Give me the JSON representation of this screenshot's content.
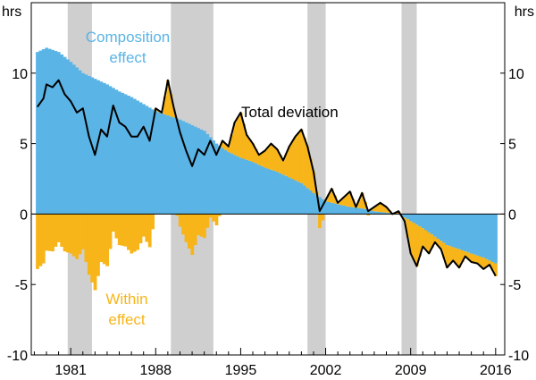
{
  "chart_data": {
    "type": "bar+line",
    "unit_left": "hrs",
    "unit_right": "hrs",
    "ylim": [
      -10,
      15
    ],
    "yticks": [
      -10,
      -5,
      0,
      5,
      10
    ],
    "xlim": [
      1977.75,
      2016.75
    ],
    "xticks": [
      1981,
      1988,
      1995,
      2002,
      2009,
      2016
    ],
    "shaded_periods": [
      [
        1980.75,
        1982.75
      ],
      [
        1989.25,
        1992.75
      ],
      [
        2000.5,
        2002.0
      ],
      [
        2008.25,
        2009.5
      ]
    ],
    "series": [
      {
        "name": "Composition effect",
        "kind": "bars",
        "color": "#5ab4e5",
        "label": "Composition\neffect",
        "points": [
          [
            1978.25,
            11.5
          ],
          [
            1979.0,
            11.8
          ],
          [
            1980.0,
            11.5
          ],
          [
            1981.0,
            10.8
          ],
          [
            1982.0,
            10.0
          ],
          [
            1983.0,
            9.6
          ],
          [
            1984.0,
            9.2
          ],
          [
            1985.0,
            8.7
          ],
          [
            1986.0,
            8.3
          ],
          [
            1987.0,
            7.8
          ],
          [
            1988.0,
            7.3
          ],
          [
            1989.0,
            7.0
          ],
          [
            1990.0,
            6.7
          ],
          [
            1991.0,
            6.3
          ],
          [
            1992.0,
            5.9
          ],
          [
            1993.0,
            5.0
          ],
          [
            1994.0,
            4.4
          ],
          [
            1995.0,
            4.0
          ],
          [
            1996.0,
            3.7
          ],
          [
            1997.0,
            3.3
          ],
          [
            1998.0,
            3.0
          ],
          [
            1999.0,
            2.6
          ],
          [
            2000.0,
            2.2
          ],
          [
            2001.0,
            1.5
          ],
          [
            2002.0,
            0.9
          ],
          [
            2003.0,
            0.7
          ],
          [
            2004.0,
            0.5
          ],
          [
            2005.0,
            0.4
          ],
          [
            2006.0,
            0.2
          ],
          [
            2007.0,
            0.1
          ],
          [
            2008.0,
            0.0
          ],
          [
            2009.0,
            -0.5
          ],
          [
            2010.0,
            -1.0
          ],
          [
            2011.0,
            -1.6
          ],
          [
            2012.0,
            -2.2
          ],
          [
            2013.0,
            -2.5
          ],
          [
            2014.0,
            -2.8
          ],
          [
            2015.0,
            -3.1
          ],
          [
            2016.0,
            -3.5
          ]
        ]
      },
      {
        "name": "Total deviation",
        "kind": "line",
        "color": "#000000",
        "label": "Total deviation",
        "points": [
          [
            1978.25,
            7.6
          ],
          [
            1978.75,
            8.2
          ],
          [
            1979.0,
            9.2
          ],
          [
            1979.5,
            9.0
          ],
          [
            1980.0,
            9.5
          ],
          [
            1980.5,
            8.5
          ],
          [
            1981.0,
            8.0
          ],
          [
            1981.5,
            7.2
          ],
          [
            1982.0,
            7.5
          ],
          [
            1982.5,
            5.5
          ],
          [
            1983.0,
            4.2
          ],
          [
            1983.5,
            6.0
          ],
          [
            1984.0,
            5.5
          ],
          [
            1984.5,
            7.7
          ],
          [
            1985.0,
            6.5
          ],
          [
            1985.5,
            6.2
          ],
          [
            1986.0,
            5.5
          ],
          [
            1986.5,
            5.5
          ],
          [
            1987.0,
            6.2
          ],
          [
            1987.5,
            5.2
          ],
          [
            1988.0,
            7.5
          ],
          [
            1988.5,
            7.2
          ],
          [
            1989.0,
            9.5
          ],
          [
            1989.5,
            7.5
          ],
          [
            1990.0,
            5.8
          ],
          [
            1990.5,
            4.5
          ],
          [
            1991.0,
            3.4
          ],
          [
            1991.5,
            4.6
          ],
          [
            1992.0,
            4.2
          ],
          [
            1992.5,
            5.2
          ],
          [
            1993.0,
            4.2
          ],
          [
            1993.5,
            5.2
          ],
          [
            1994.0,
            4.8
          ],
          [
            1994.5,
            6.5
          ],
          [
            1995.0,
            7.2
          ],
          [
            1995.5,
            5.6
          ],
          [
            1996.0,
            5.0
          ],
          [
            1996.5,
            4.2
          ],
          [
            1997.0,
            4.5
          ],
          [
            1997.5,
            5.0
          ],
          [
            1998.0,
            4.6
          ],
          [
            1998.5,
            3.8
          ],
          [
            1999.0,
            4.8
          ],
          [
            1999.5,
            5.5
          ],
          [
            2000.0,
            6.0
          ],
          [
            2000.5,
            4.8
          ],
          [
            2001.0,
            3.0
          ],
          [
            2001.5,
            0.2
          ],
          [
            2002.0,
            1.0
          ],
          [
            2002.5,
            1.8
          ],
          [
            2003.0,
            0.8
          ],
          [
            2003.5,
            1.2
          ],
          [
            2004.0,
            1.6
          ],
          [
            2004.5,
            0.5
          ],
          [
            2005.0,
            1.5
          ],
          [
            2005.5,
            0.2
          ],
          [
            2006.0,
            0.5
          ],
          [
            2006.5,
            0.8
          ],
          [
            2007.0,
            0.5
          ],
          [
            2007.5,
            0.0
          ],
          [
            2008.0,
            0.2
          ],
          [
            2008.5,
            -0.5
          ],
          [
            2009.0,
            -2.8
          ],
          [
            2009.5,
            -3.7
          ],
          [
            2010.0,
            -2.3
          ],
          [
            2010.5,
            -2.8
          ],
          [
            2011.0,
            -2.0
          ],
          [
            2011.5,
            -2.5
          ],
          [
            2012.0,
            -3.8
          ],
          [
            2012.5,
            -3.3
          ],
          [
            2013.0,
            -3.8
          ],
          [
            2013.5,
            -3.0
          ],
          [
            2014.0,
            -3.4
          ],
          [
            2014.5,
            -3.5
          ],
          [
            2015.0,
            -3.9
          ],
          [
            2015.5,
            -3.6
          ],
          [
            2016.0,
            -4.4
          ]
        ]
      },
      {
        "name": "Within effect",
        "kind": "derived",
        "formula": "total deviation - composition effect",
        "color": "#f7b51a",
        "label": "Within\neffect"
      }
    ]
  }
}
